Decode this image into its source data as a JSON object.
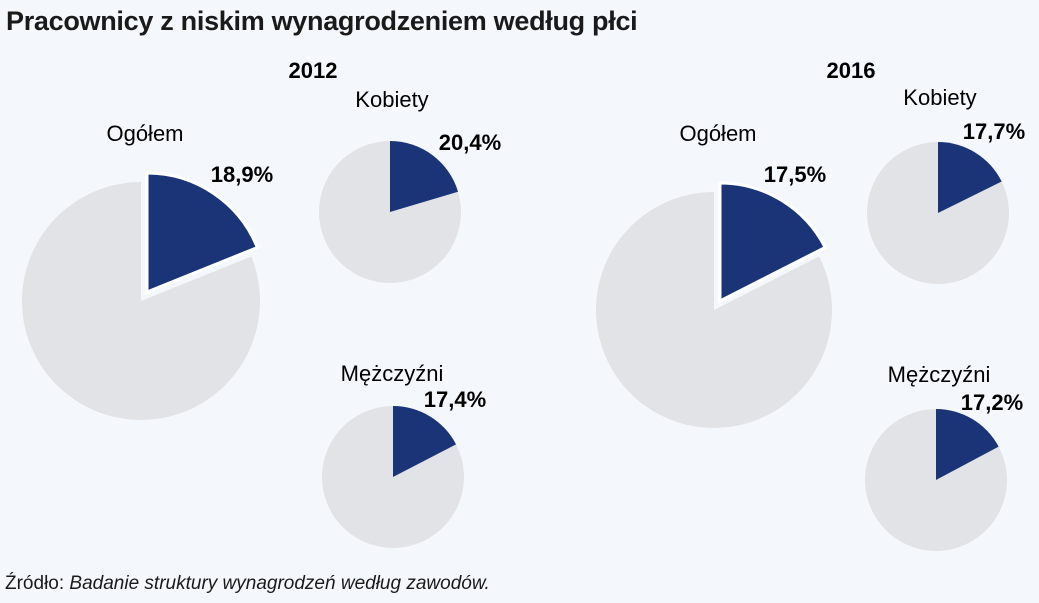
{
  "title": "Pracownicy z niskim wynagrodzeniem według płci",
  "source": {
    "prefix": "Źródło:",
    "text": "Badanie struktury wynagrodzeń według zawodów."
  },
  "colors": {
    "highlight": "#1b3478",
    "rest": "#e1e3e7",
    "background": "#f4f8fd"
  },
  "chart_data": [
    {
      "type": "pie",
      "group": "2012",
      "series": [
        {
          "name": "Ogółem",
          "label": "18,9%",
          "value": 18.9
        },
        {
          "name": "Kobiety",
          "label": "20,4%",
          "value": 20.4
        },
        {
          "name": "Mężczyźni",
          "label": "17,4%",
          "value": 17.4
        }
      ]
    },
    {
      "type": "pie",
      "group": "2016",
      "series": [
        {
          "name": "Ogółem",
          "label": "17,5%",
          "value": 17.5
        },
        {
          "name": "Kobiety",
          "label": "17,7%",
          "value": 17.7
        },
        {
          "name": "Mężczyźni",
          "label": "17,2%",
          "value": 17.2
        }
      ]
    }
  ]
}
